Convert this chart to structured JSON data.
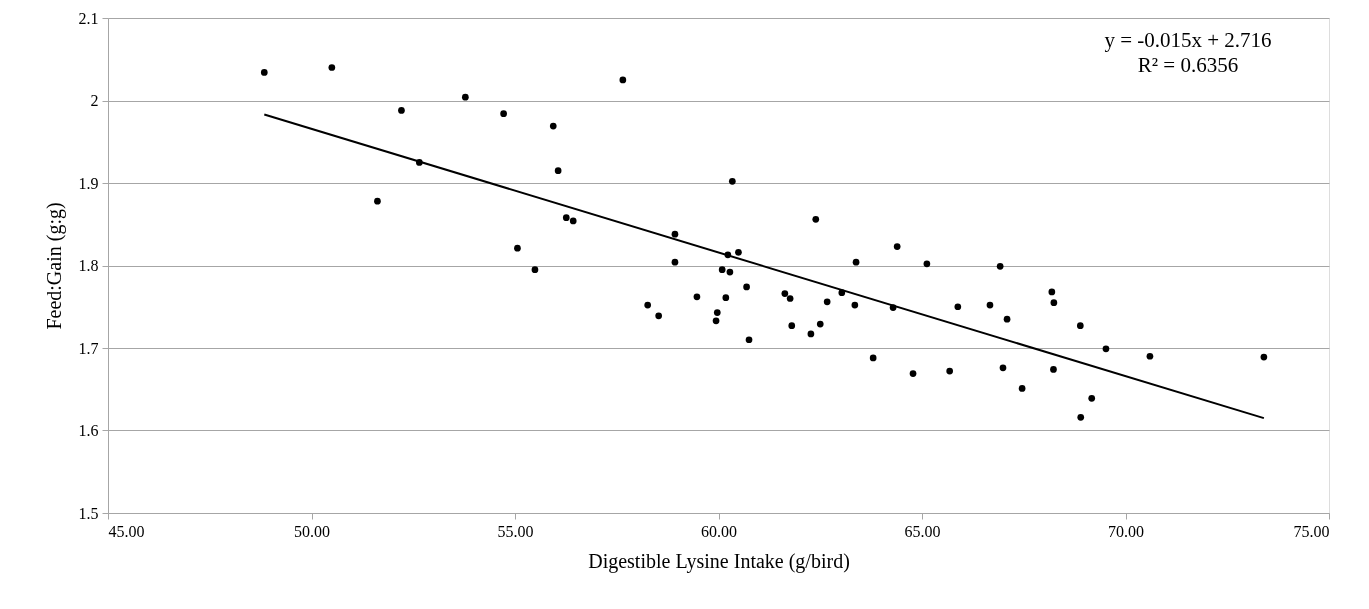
{
  "chart_data": {
    "type": "scatter",
    "xlabel": "Digestible Lysine Intake (g/bird)",
    "ylabel": "Feed:Gain (g:g)",
    "xlim": [
      45,
      75
    ],
    "ylim": [
      1.5,
      2.1
    ],
    "xticks": [
      {
        "value": 45,
        "label": "45.00"
      },
      {
        "value": 50,
        "label": "50.00"
      },
      {
        "value": 55,
        "label": "55.00"
      },
      {
        "value": 60,
        "label": "60.00"
      },
      {
        "value": 65,
        "label": "65.00"
      },
      {
        "value": 70,
        "label": "70.00"
      },
      {
        "value": 75,
        "label": "75.00"
      }
    ],
    "yticks": [
      1.5,
      1.6,
      1.7,
      1.8,
      1.9,
      2,
      2.1
    ],
    "grid": "y",
    "marker": "circle",
    "annotations": [
      "y = -0.015x + 2.716",
      "R² = 0.6356"
    ],
    "series": [
      {
        "color": "#000000",
        "x": [
          48.84,
          50.5,
          52.21,
          53.78,
          54.72,
          52.65,
          51.62,
          55.06,
          57.65,
          55.94,
          56.06,
          60.34,
          56.26,
          56.43,
          55.49,
          62.39,
          58.93,
          58.93,
          60.23,
          60.49,
          60.09,
          60.28,
          64.39,
          63.38,
          58.26,
          58.53,
          59.47,
          60.18,
          60.69,
          59.97,
          59.94,
          60.75,
          61.63,
          61.76,
          61.8,
          62.27,
          62.5,
          62.67,
          63.03,
          63.35,
          64.29,
          63.8,
          64.78,
          65.12,
          66.92,
          65.88,
          66.67,
          67.09,
          68.19,
          68.24,
          68.89,
          69.52,
          70.6,
          73.4,
          65.68,
          66.99,
          68.23,
          67.46,
          69.17,
          68.9
        ],
        "values": [
          2.034,
          2.04,
          1.988,
          2.004,
          1.984,
          1.925,
          1.878,
          1.821,
          2.025,
          1.969,
          1.915,
          1.902,
          1.858,
          1.854,
          1.795,
          1.856,
          1.838,
          1.804,
          1.813,
          1.816,
          1.795,
          1.792,
          1.823,
          1.804,
          1.752,
          1.739,
          1.762,
          1.761,
          1.774,
          1.743,
          1.733,
          1.71,
          1.766,
          1.76,
          1.727,
          1.717,
          1.729,
          1.756,
          1.767,
          1.752,
          1.749,
          1.688,
          1.669,
          1.802,
          1.799,
          1.75,
          1.752,
          1.735,
          1.768,
          1.755,
          1.727,
          1.699,
          1.69,
          1.689,
          1.672,
          1.676,
          1.674,
          1.651,
          1.639,
          1.616
        ]
      },
      {
        "type": "line",
        "color": "#000000",
        "line_style": "solid",
        "marker": "none",
        "x": [
          48.84,
          73.4
        ],
        "values": [
          1.983,
          1.615
        ]
      }
    ]
  }
}
